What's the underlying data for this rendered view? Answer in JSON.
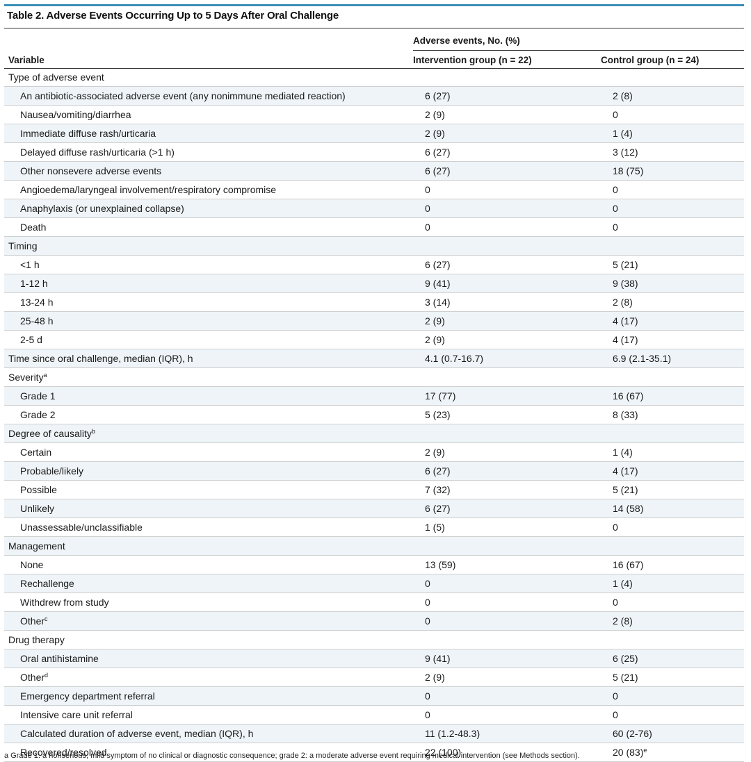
{
  "title": "Table 2. Adverse Events Occurring Up to 5 Days After Oral Challenge",
  "header": {
    "group_label": "Adverse events, No. (%)",
    "variable_label": "Variable",
    "col1_label": "Intervention group (n = 22)",
    "col2_label": "Control group (n = 24)"
  },
  "rows": [
    {
      "label": "Type of adverse event",
      "indent": false,
      "c1": "",
      "c2": ""
    },
    {
      "label": "An antibiotic-associated adverse event (any nonimmune mediated reaction)",
      "indent": true,
      "c1": "6 (27)",
      "c2": "2 (8)"
    },
    {
      "label": "Nausea/vomiting/diarrhea",
      "indent": true,
      "c1": "2 (9)",
      "c2": "0"
    },
    {
      "label": "Immediate diffuse rash/urticaria",
      "indent": true,
      "c1": "2 (9)",
      "c2": "1 (4)"
    },
    {
      "label": "Delayed diffuse rash/urticaria (>1 h)",
      "indent": true,
      "c1": "6 (27)",
      "c2": "3 (12)"
    },
    {
      "label": "Other nonsevere adverse events",
      "indent": true,
      "c1": "6 (27)",
      "c2": "18 (75)"
    },
    {
      "label": "Angioedema/laryngeal involvement/respiratory compromise",
      "indent": true,
      "c1": "0",
      "c2": "0"
    },
    {
      "label": "Anaphylaxis (or unexplained collapse)",
      "indent": true,
      "c1": "0",
      "c2": "0"
    },
    {
      "label": "Death",
      "indent": true,
      "c1": "0",
      "c2": "0"
    },
    {
      "label": "Timing",
      "indent": false,
      "c1": "",
      "c2": ""
    },
    {
      "label": "<1 h",
      "indent": true,
      "c1": "6 (27)",
      "c2": "5 (21)"
    },
    {
      "label": "1-12 h",
      "indent": true,
      "c1": "9 (41)",
      "c2": "9 (38)"
    },
    {
      "label": "13-24 h",
      "indent": true,
      "c1": "3 (14)",
      "c2": "2 (8)"
    },
    {
      "label": "25-48 h",
      "indent": true,
      "c1": "2 (9)",
      "c2": "4 (17)"
    },
    {
      "label": "2-5 d",
      "indent": true,
      "c1": "2 (9)",
      "c2": "4 (17)"
    },
    {
      "label": "Time since oral challenge, median (IQR), h",
      "indent": false,
      "c1": "4.1 (0.7-16.7)",
      "c2": "6.9 (2.1-35.1)"
    },
    {
      "label": "Severity",
      "sup": "a",
      "indent": false,
      "c1": "",
      "c2": ""
    },
    {
      "label": "Grade 1",
      "indent": true,
      "c1": "17 (77)",
      "c2": "16 (67)"
    },
    {
      "label": "Grade 2",
      "indent": true,
      "c1": "5 (23)",
      "c2": "8 (33)"
    },
    {
      "label": "Degree of causality",
      "sup": "b",
      "indent": false,
      "c1": "",
      "c2": ""
    },
    {
      "label": "Certain",
      "indent": true,
      "c1": "2 (9)",
      "c2": "1 (4)"
    },
    {
      "label": "Probable/likely",
      "indent": true,
      "c1": "6 (27)",
      "c2": "4 (17)"
    },
    {
      "label": "Possible",
      "indent": true,
      "c1": "7 (32)",
      "c2": "5 (21)"
    },
    {
      "label": "Unlikely",
      "indent": true,
      "c1": "6 (27)",
      "c2": "14 (58)"
    },
    {
      "label": "Unassessable/unclassifiable",
      "indent": true,
      "c1": "1 (5)",
      "c2": "0"
    },
    {
      "label": "Management",
      "indent": false,
      "c1": "",
      "c2": ""
    },
    {
      "label": "None",
      "indent": true,
      "c1": "13 (59)",
      "c2": "16 (67)"
    },
    {
      "label": "Rechallenge",
      "indent": true,
      "c1": "0",
      "c2": "1 (4)"
    },
    {
      "label": "Withdrew from study",
      "indent": true,
      "c1": "0",
      "c2": "0"
    },
    {
      "label": "Other",
      "sup": "c",
      "indent": true,
      "c1": "0",
      "c2": "2 (8)"
    },
    {
      "label": "Drug therapy",
      "indent": false,
      "c1": "",
      "c2": ""
    },
    {
      "label": "Oral antihistamine",
      "indent": true,
      "c1": "9 (41)",
      "c2": "6 (25)"
    },
    {
      "label": "Other",
      "sup": "d",
      "indent": true,
      "c1": "2 (9)",
      "c2": "5 (21)"
    },
    {
      "label": "Emergency department referral",
      "indent": true,
      "c1": "0",
      "c2": "0"
    },
    {
      "label": "Intensive care unit referral",
      "indent": true,
      "c1": "0",
      "c2": "0"
    },
    {
      "label": "Calculated duration of adverse event, median (IQR), h",
      "indent": true,
      "c1": "11 (1.2-48.3)",
      "c2": "60 (2-76)"
    },
    {
      "label": "Recovered/resolved",
      "indent": true,
      "c1": "22 (100)",
      "c2": "20 (83)",
      "c2_sup": "e"
    }
  ],
  "footnote": "a Grade 1: a nonserious, mild symptom of no clinical or diagnostic consequence; grade 2: a moderate adverse event requiring medical intervention (see Methods section).",
  "colors": {
    "accent_rule": "#3a8fb7",
    "row_shade": "#eef4f7"
  }
}
